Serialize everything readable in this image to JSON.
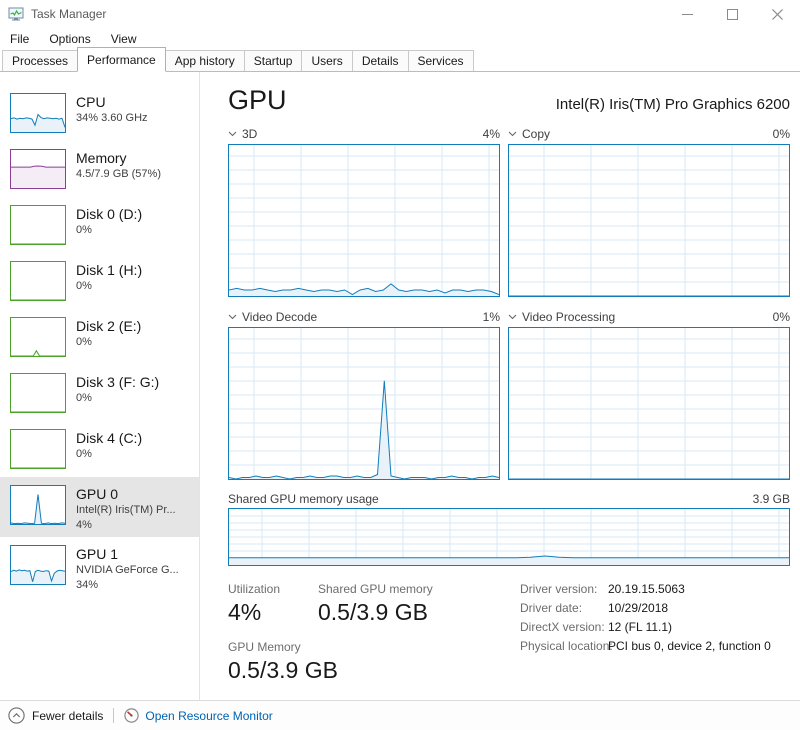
{
  "window": {
    "title": "Task Manager"
  },
  "menu": {
    "items": [
      {
        "label": "File"
      },
      {
        "label": "Options"
      },
      {
        "label": "View"
      }
    ]
  },
  "tabs": {
    "items": [
      {
        "label": "Processes",
        "active": false
      },
      {
        "label": "Performance",
        "active": true
      },
      {
        "label": "App history",
        "active": false
      },
      {
        "label": "Startup",
        "active": false
      },
      {
        "label": "Users",
        "active": false
      },
      {
        "label": "Details",
        "active": false
      },
      {
        "label": "Services",
        "active": false
      }
    ]
  },
  "sidebar": {
    "items": [
      {
        "title": "CPU",
        "lines": [
          "34% 3.60 GHz"
        ],
        "color": "blue",
        "selected": false
      },
      {
        "title": "Memory",
        "lines": [
          "4.5/7.9 GB (57%)"
        ],
        "color": "purple",
        "selected": false
      },
      {
        "title": "Disk 0 (D:)",
        "lines": [
          "0%"
        ],
        "color": "green",
        "selected": false
      },
      {
        "title": "Disk 1 (H:)",
        "lines": [
          "0%"
        ],
        "color": "green",
        "selected": false
      },
      {
        "title": "Disk 2 (E:)",
        "lines": [
          "0%"
        ],
        "color": "green",
        "selected": false
      },
      {
        "title": "Disk 3 (F: G:)",
        "lines": [
          "0%"
        ],
        "color": "green",
        "selected": false
      },
      {
        "title": "Disk 4 (C:)",
        "lines": [
          "0%"
        ],
        "color": "green",
        "selected": false
      },
      {
        "title": "GPU 0",
        "lines": [
          "Intel(R) Iris(TM) Pr...",
          "4%"
        ],
        "color": "blue",
        "selected": true
      },
      {
        "title": "GPU 1",
        "lines": [
          "NVIDIA GeForce G...",
          "34%"
        ],
        "color": "blue",
        "selected": false
      }
    ]
  },
  "main": {
    "title": "GPU",
    "device_name": "Intel(R) Iris(TM) Pro Graphics 6200",
    "engine_charts": [
      {
        "label": "3D",
        "value": "4%"
      },
      {
        "label": "Copy",
        "value": "0%"
      },
      {
        "label": "Video Decode",
        "value": "1%"
      },
      {
        "label": "Video Processing",
        "value": "0%"
      }
    ],
    "shared_chart": {
      "label": "Shared GPU memory usage",
      "max_label": "3.9 GB"
    },
    "stats": {
      "utilization": {
        "label": "Utilization",
        "value": "4%"
      },
      "gpu_memory": {
        "label": "GPU Memory",
        "value": "0.5/3.9 GB"
      },
      "shared_memory": {
        "label": "Shared GPU memory",
        "value": "0.5/3.9 GB"
      },
      "details": [
        {
          "label": "Driver version:",
          "value": "20.19.15.5063"
        },
        {
          "label": "Driver date:",
          "value": "10/29/2018"
        },
        {
          "label": "DirectX version:",
          "value": "12 (FL 11.1)"
        },
        {
          "label": "Physical location:",
          "value": "PCI bus 0, device 2, function 0"
        }
      ]
    }
  },
  "footer": {
    "fewer_details": "Fewer details",
    "open_resource_monitor": "Open Resource Monitor"
  },
  "colors": {
    "blue": "#117dbb",
    "blue_fill": "#e9f2f9",
    "purple": "#8b3e94",
    "purple_fill": "#f4edf6",
    "green": "#4aa32a",
    "green_fill": "#eef7ea",
    "grid": "#d9eaf7",
    "link_blue": "#0063b1",
    "selected_bg": "#e5e5e5"
  },
  "chart_data": {
    "engine": {
      "d3": {
        "type": "area",
        "ylim": [
          0,
          100
        ],
        "grid": true,
        "hgap": 14,
        "vgap": 47,
        "color": "blue",
        "points": [
          4,
          5,
          4,
          4,
          5,
          4,
          3,
          4,
          4,
          5,
          4,
          3,
          4,
          4,
          3,
          4,
          1,
          4,
          5,
          3,
          4,
          8,
          4,
          3,
          4,
          4,
          3,
          4,
          2,
          4,
          4,
          3,
          4,
          4,
          3,
          1
        ]
      },
      "copy": {
        "type": "area",
        "ylim": [
          0,
          100
        ],
        "grid": true,
        "hgap": 14,
        "vgap": 47,
        "color": "blue",
        "points": [
          0,
          0,
          0,
          0,
          0,
          0,
          0,
          0
        ]
      },
      "video_decode": {
        "type": "area",
        "ylim": [
          0,
          100
        ],
        "grid": true,
        "hgap": 14,
        "vgap": 47,
        "color": "blue",
        "points": [
          1,
          0,
          1,
          1,
          2,
          1,
          1,
          2,
          1,
          0,
          1,
          1,
          2,
          1,
          1,
          2,
          2,
          1,
          1,
          2,
          1,
          1,
          3,
          65,
          2,
          1,
          0,
          1,
          1,
          1,
          0,
          1,
          1,
          2,
          1,
          1,
          0,
          1,
          1,
          2,
          1
        ]
      },
      "video_processing": {
        "type": "area",
        "ylim": [
          0,
          100
        ],
        "grid": true,
        "hgap": 14,
        "vgap": 47,
        "color": "blue",
        "points": [
          0,
          0,
          0,
          0,
          0,
          0,
          0,
          0
        ]
      }
    },
    "shared": {
      "type": "area",
      "ylim": [
        0,
        100
      ],
      "grid": true,
      "hgap": 7,
      "vgap": 47,
      "color": "blue",
      "points": [
        13,
        13,
        13,
        13,
        13,
        13,
        13,
        13,
        13,
        13,
        13,
        13,
        13,
        13,
        13,
        13,
        13,
        13,
        13,
        13,
        13,
        14,
        16,
        14,
        13,
        13,
        13,
        13,
        13,
        13,
        13,
        13,
        13,
        13,
        13,
        13,
        13,
        13,
        13,
        13
      ]
    },
    "sidebar": {
      "cpu": {
        "type": "area",
        "ylim": [
          0,
          100
        ],
        "grid": false,
        "color": "blue",
        "points": [
          35,
          37,
          34,
          36,
          35,
          37,
          36,
          34,
          18,
          46,
          38,
          35,
          37,
          36,
          35,
          36,
          34,
          36,
          12
        ]
      },
      "memory": {
        "type": "area",
        "ylim": [
          0,
          100
        ],
        "grid": false,
        "color": "purple",
        "points": [
          55,
          55,
          55,
          55,
          55,
          55,
          57,
          58,
          57,
          55,
          55,
          55,
          55,
          55,
          55
        ]
      },
      "disk0": {
        "type": "area",
        "ylim": [
          0,
          100
        ],
        "grid": false,
        "color": "green",
        "points": [
          0,
          0
        ]
      },
      "disk1": {
        "type": "area",
        "ylim": [
          0,
          100
        ],
        "grid": false,
        "color": "green",
        "points": [
          0,
          0
        ]
      },
      "disk2": {
        "type": "area",
        "ylim": [
          0,
          100
        ],
        "grid": false,
        "color": "green",
        "points": [
          0,
          0,
          0,
          0,
          0,
          0,
          0,
          0,
          14,
          0,
          0,
          0,
          0,
          0,
          0,
          0,
          0,
          0
        ]
      },
      "disk3": {
        "type": "area",
        "ylim": [
          0,
          100
        ],
        "grid": false,
        "color": "green",
        "points": [
          0,
          0
        ]
      },
      "disk4": {
        "type": "area",
        "ylim": [
          0,
          100
        ],
        "grid": false,
        "color": "green",
        "points": [
          0,
          0
        ]
      },
      "gpu0": {
        "type": "area",
        "ylim": [
          0,
          100
        ],
        "grid": false,
        "color": "blue",
        "points": [
          3,
          1,
          2,
          1,
          3,
          2,
          1,
          2,
          78,
          2,
          1,
          3,
          1,
          2,
          1,
          3,
          2
        ]
      },
      "gpu1": {
        "type": "area",
        "ylim": [
          0,
          100
        ],
        "grid": false,
        "color": "blue",
        "points": [
          33,
          36,
          34,
          37,
          35,
          36,
          34,
          35,
          6,
          33,
          36,
          34,
          33,
          35,
          34,
          8,
          28,
          34,
          36,
          35,
          34
        ]
      }
    }
  }
}
